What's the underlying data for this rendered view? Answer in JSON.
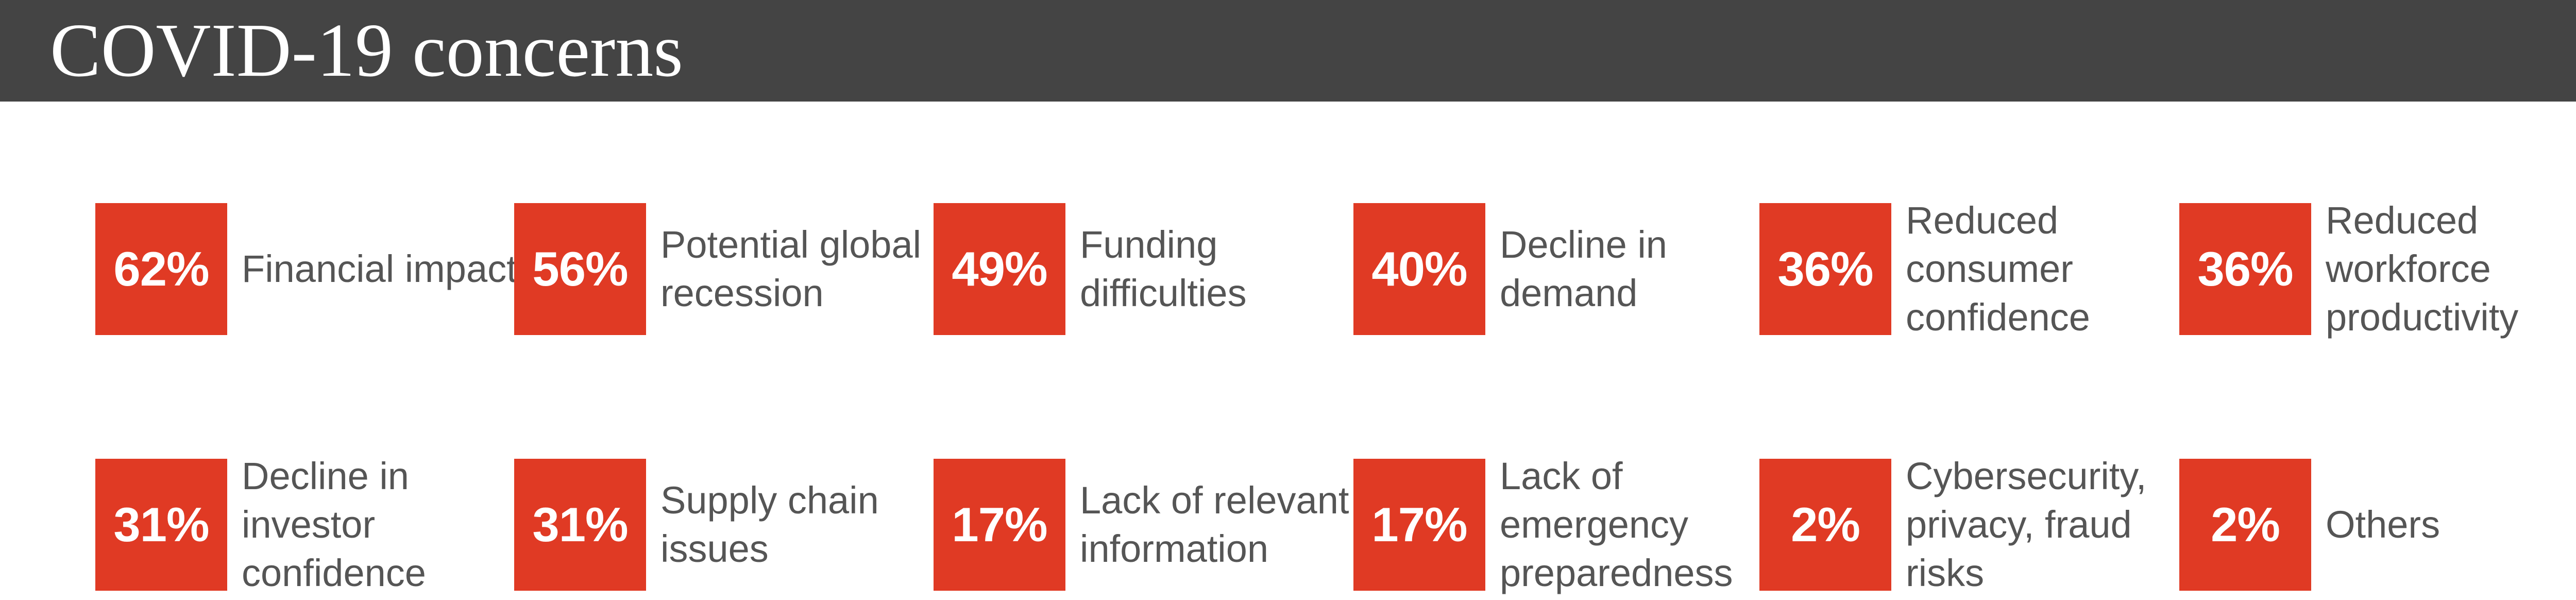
{
  "header": {
    "title": "COVID-19 concerns"
  },
  "chart_data": {
    "type": "table",
    "title": "COVID-19 concerns",
    "unit": "%",
    "items": [
      {
        "value": 62,
        "display": "62%",
        "label": "Financial impact"
      },
      {
        "value": 56,
        "display": "56%",
        "label": "Potential global recession"
      },
      {
        "value": 49,
        "display": "49%",
        "label": "Funding difficulties"
      },
      {
        "value": 40,
        "display": "40%",
        "label": "Decline in demand"
      },
      {
        "value": 36,
        "display": "36%",
        "label": "Reduced consumer confidence"
      },
      {
        "value": 36,
        "display": "36%",
        "label": "Reduced workforce productivity"
      },
      {
        "value": 31,
        "display": "31%",
        "label": "Decline in investor confidence"
      },
      {
        "value": 31,
        "display": "31%",
        "label": "Supply chain issues"
      },
      {
        "value": 17,
        "display": "17%",
        "label": "Lack of relevant information"
      },
      {
        "value": 17,
        "display": "17%",
        "label": "Lack of emergency preparedness"
      },
      {
        "value": 2,
        "display": "2%",
        "label": "Cybersecurity, privacy, fraud risks"
      },
      {
        "value": 2,
        "display": "2%",
        "label": "Others"
      }
    ]
  },
  "colors": {
    "header_bg": "#444444",
    "box": "#e03a24",
    "label_text": "#555555"
  }
}
